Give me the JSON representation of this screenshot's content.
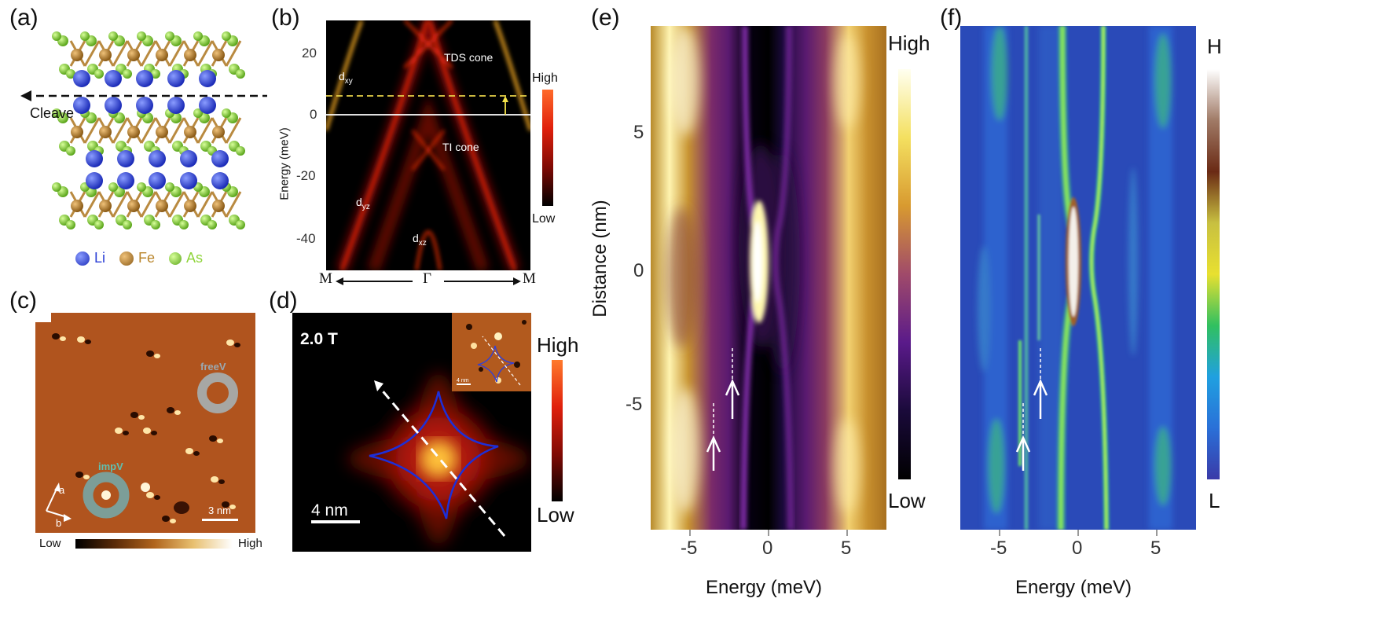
{
  "panels": {
    "a": {
      "label": "(a)",
      "cleave_label": "Cleave",
      "legend": [
        {
          "name": "Li",
          "color": "#2b3fd6"
        },
        {
          "name": "Fe",
          "color": "#b9852b"
        },
        {
          "name": "As",
          "color": "#8fd43a"
        }
      ]
    },
    "b": {
      "label": "(b)",
      "ylabel": "Energy (meV)",
      "yticks": [
        "20",
        "0",
        "-20",
        "-40"
      ],
      "xticks": [
        "M",
        "Γ",
        "M"
      ],
      "annotations": {
        "tds": "TDS cone",
        "ti": "TI cone",
        "dxy": "d",
        "dxy_sub": "xy",
        "dyz": "d",
        "dyz_sub": "yz",
        "dxz": "d",
        "dxz_sub": "xz"
      },
      "colorbar": {
        "high": "High",
        "low": "Low"
      }
    },
    "c": {
      "label": "(c)",
      "labels": {
        "freeV": "freeV",
        "impV": "impV",
        "a": "a",
        "b": "b",
        "scale": "3 nm"
      },
      "colorbar": {
        "low": "Low",
        "high": "High"
      }
    },
    "d": {
      "label": "(d)",
      "field": "2.0 T",
      "scale": "4 nm",
      "inset_scale": "4 nm",
      "colorbar": {
        "high": "High",
        "low": "Low"
      }
    },
    "e": {
      "label": "(e)",
      "ylabel": "Distance (nm)",
      "xlabel": "Energy (meV)",
      "yticks": [
        "5",
        "0",
        "-5"
      ],
      "xticks": [
        "-5",
        "0",
        "5"
      ],
      "colorbar": {
        "high": "High",
        "low": "Low"
      }
    },
    "f": {
      "label": "(f)",
      "xlabel": "Energy (meV)",
      "xticks": [
        "-5",
        "0",
        "5"
      ],
      "colorbar": {
        "high": "H",
        "low": "L"
      }
    }
  }
}
